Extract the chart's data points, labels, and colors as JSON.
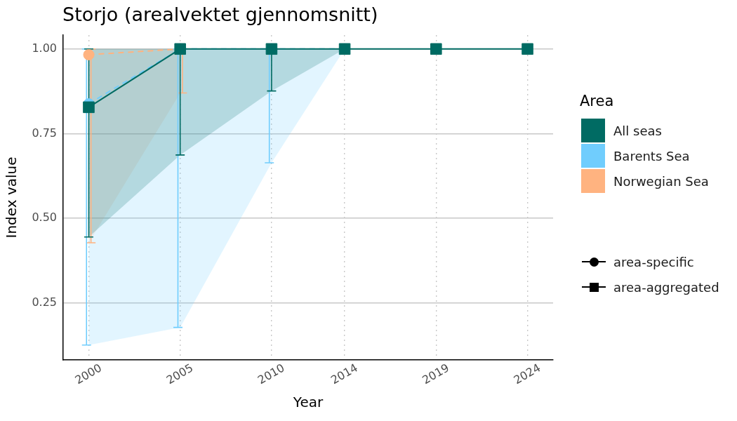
{
  "chart_data": {
    "type": "line",
    "title": "Storjo (arealvektet gjennomsnitt)",
    "xlabel": "Year",
    "ylabel": "Index value",
    "legend_title": "Area",
    "x": [
      2000,
      2005,
      2010,
      2014,
      2019,
      2024
    ],
    "series": [
      {
        "name": "All seas",
        "color": "#006b63",
        "marker": "square",
        "line_style": "solid",
        "values": [
          0.828,
          1.0,
          1.0,
          1.0,
          1.0,
          1.0
        ],
        "errors": [
          [
            0.445,
            1.0
          ],
          [
            0.687,
            1.0
          ],
          [
            0.876,
            1.0
          ],
          null,
          null,
          null
        ],
        "lower": [
          0.445,
          0.687,
          0.876,
          1.0,
          1.0,
          1.0
        ],
        "upper": [
          1.0,
          1.0,
          1.0,
          1.0,
          1.0,
          1.0
        ]
      },
      {
        "name": "Barents Sea",
        "color": "#70cdfd",
        "marker": "circle",
        "line_style": "dashed",
        "values": [
          0.838,
          1.0,
          1.0,
          1.0,
          null,
          null
        ],
        "errors": [
          [
            0.126,
            1.0
          ],
          [
            0.178,
            1.0
          ],
          [
            0.664,
            1.0
          ],
          null,
          null,
          null
        ],
        "lower": [
          0.126,
          0.178,
          0.664,
          1.0,
          null,
          null
        ],
        "upper": [
          1.0,
          1.0,
          1.0,
          1.0,
          null,
          null
        ]
      },
      {
        "name": "Norwegian Sea",
        "color": "#ffb380",
        "marker": "circle",
        "line_style": "dashed",
        "values": [
          0.983,
          1.0,
          null,
          null,
          null,
          null
        ],
        "errors": [
          [
            0.428,
            1.0
          ],
          [
            0.87,
            1.0
          ],
          null,
          null,
          null,
          null
        ],
        "lower": [
          0.428,
          0.87,
          null,
          null,
          null,
          null
        ],
        "upper": [
          1.0,
          1.0,
          null,
          null,
          null,
          null
        ]
      }
    ],
    "xlim": [
      1998.6,
      2025.4
    ],
    "xticks": [
      2000,
      2005,
      2010,
      2014,
      2019,
      2024
    ],
    "ylim": [
      0.082,
      1.041
    ],
    "yticks": [
      0.25,
      {
        "value": 0.5,
        "label": "0.50"
      },
      0.75,
      {
        "value": 1,
        "label": "1.00"
      }
    ],
    "grid": true,
    "legend": "right",
    "annotations": [
      "area-specific",
      "area-aggregated"
    ]
  }
}
